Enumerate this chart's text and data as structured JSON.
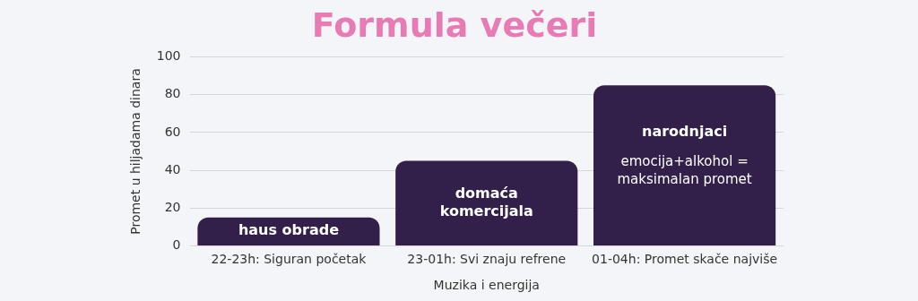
{
  "chart_data": {
    "type": "bar",
    "title": "Formula večeri",
    "xlabel": "Muzika i energija",
    "ylabel": "Promet u hiljadama dinara",
    "categories": [
      "22-23h: Siguran početak",
      "23-01h: Svi znaju refrene",
      "01-04h: Promet skače najviše"
    ],
    "values": [
      15,
      45,
      85
    ],
    "color": "#33204a",
    "ylim": [
      0,
      100
    ],
    "yticks": [
      0,
      20,
      40,
      60,
      80,
      100
    ],
    "grid": "y",
    "annotations": [
      "haus obrade",
      "domaća komercijala",
      "narodnjaci",
      "emocija+alkohol = maksimalan promet"
    ]
  }
}
